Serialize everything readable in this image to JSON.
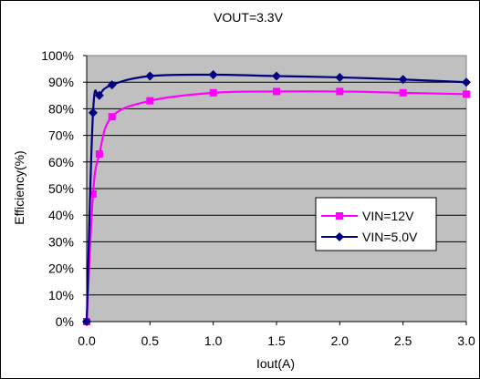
{
  "chart_data": {
    "type": "line",
    "title": "VOUT=3.3V",
    "xlabel": "Iout(A)",
    "ylabel": "Efficiency(%)",
    "xlim": [
      0,
      3.0
    ],
    "ylim": [
      0,
      100
    ],
    "x_ticks": [
      "0.0",
      "0.5",
      "1.0",
      "1.5",
      "2.0",
      "2.5",
      "3.0"
    ],
    "y_ticks": [
      "0%",
      "10%",
      "20%",
      "30%",
      "40%",
      "50%",
      "60%",
      "70%",
      "80%",
      "90%",
      "100%"
    ],
    "grid": "horizontal",
    "legend_position": "right",
    "plot_background": "#c0c0c0",
    "series": [
      {
        "name": "VIN=12V",
        "color": "#ff00ff",
        "marker": "square",
        "x": [
          0,
          0.05,
          0.1,
          0.2,
          0.5,
          1.0,
          1.5,
          2.0,
          2.5,
          3.0
        ],
        "y": [
          0,
          48,
          63,
          77,
          83,
          86,
          86.5,
          86.5,
          86,
          85.5
        ]
      },
      {
        "name": "VIN=5.0V",
        "color": "#000080",
        "marker": "diamond",
        "x": [
          0,
          0.05,
          0.1,
          0.2,
          0.5,
          1.0,
          1.5,
          2.0,
          2.5,
          3.0
        ],
        "y": [
          0,
          78.5,
          85,
          89,
          92.3,
          92.8,
          92.3,
          91.8,
          91,
          90
        ]
      }
    ]
  }
}
